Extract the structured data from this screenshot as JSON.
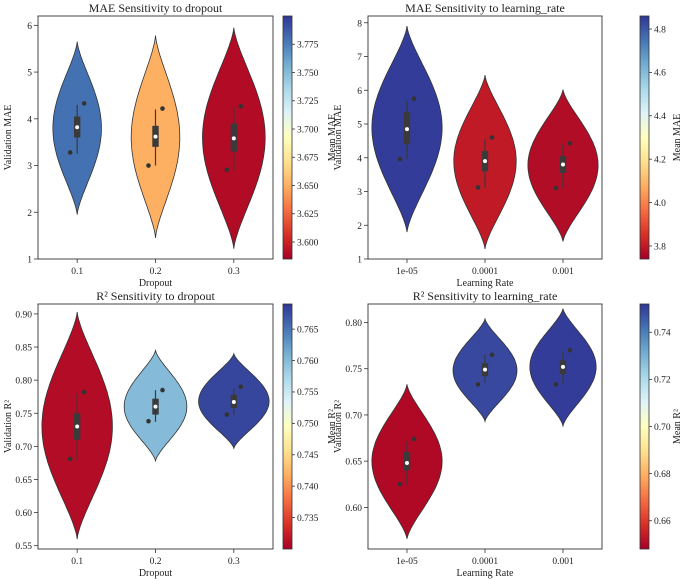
{
  "chart_data": [
    {
      "type": "violin",
      "title": "MAE Sensitivity to dropout",
      "xlabel": "Dropout",
      "ylabel": "Validation MAE",
      "categories": [
        "0.1",
        "0.2",
        "0.3"
      ],
      "ylim": [
        1,
        6.2
      ],
      "yticks": [
        "1",
        "2",
        "3",
        "4",
        "5",
        "6"
      ],
      "violins": [
        {
          "category": "0.1",
          "min": 1.95,
          "max": 5.65,
          "mode": 3.8,
          "width": 0.62,
          "q1": 3.6,
          "q3": 4.05,
          "median": 3.82,
          "wlo": 3.25,
          "whi": 4.3,
          "points": [
            4.33,
            3.28
          ],
          "mean": 3.78
        },
        {
          "category": "0.2",
          "min": 1.45,
          "max": 5.78,
          "mode": 3.6,
          "width": 0.62,
          "q1": 3.4,
          "q3": 3.85,
          "median": 3.62,
          "wlo": 3.0,
          "whi": 4.2,
          "points": [
            4.22,
            3.0
          ],
          "mean": 3.65
        },
        {
          "category": "0.3",
          "min": 1.22,
          "max": 5.95,
          "mode": 3.6,
          "width": 0.8,
          "q1": 3.3,
          "q3": 3.9,
          "median": 3.58,
          "wlo": 2.9,
          "whi": 4.25,
          "points": [
            4.27,
            2.91
          ],
          "mean": 3.59
        }
      ],
      "colorbar": {
        "label": "Mean MAE",
        "min": 3.585,
        "max": 3.8,
        "ticks": [
          "3.600",
          "3.625",
          "3.650",
          "3.675",
          "3.700",
          "3.725",
          "3.750",
          "3.775"
        ]
      }
    },
    {
      "type": "violin",
      "title": "MAE Sensitivity to learning_rate",
      "xlabel": "Learning Rate",
      "ylabel": "Validation MAE",
      "categories": [
        "1e-05",
        "0.0001",
        "0.001"
      ],
      "ylim": [
        1,
        8.2
      ],
      "yticks": [
        "1",
        "2",
        "3",
        "4",
        "5",
        "6",
        "7",
        "8"
      ],
      "violins": [
        {
          "category": "1e-05",
          "min": 1.8,
          "max": 7.9,
          "mode": 4.9,
          "width": 0.9,
          "q1": 4.4,
          "q3": 5.35,
          "median": 4.85,
          "wlo": 3.95,
          "whi": 5.7,
          "points": [
            5.75,
            3.96
          ],
          "mean": 4.85
        },
        {
          "category": "0.0001",
          "min": 1.3,
          "max": 6.45,
          "mode": 3.9,
          "width": 0.8,
          "q1": 3.6,
          "q3": 4.2,
          "median": 3.9,
          "wlo": 3.1,
          "whi": 4.55,
          "points": [
            4.6,
            3.12
          ],
          "mean": 3.8
        },
        {
          "category": "0.001",
          "min": 1.52,
          "max": 6.02,
          "mode": 3.78,
          "width": 0.9,
          "q1": 3.55,
          "q3": 4.05,
          "median": 3.8,
          "wlo": 3.1,
          "whi": 4.4,
          "points": [
            4.43,
            3.1
          ],
          "mean": 3.77
        }
      ],
      "colorbar": {
        "label": "Mean MAE",
        "min": 3.74,
        "max": 4.86,
        "ticks": [
          "3.8",
          "4.0",
          "4.2",
          "4.4",
          "4.6",
          "4.8"
        ]
      }
    },
    {
      "type": "violin",
      "title": "R² Sensitivity to dropout",
      "xlabel": "Dropout",
      "ylabel": "Validation R²",
      "categories": [
        "0.1",
        "0.2",
        "0.3"
      ],
      "ylim": [
        0.545,
        0.915
      ],
      "yticks": [
        "0.55",
        "0.60",
        "0.65",
        "0.70",
        "0.75",
        "0.80",
        "0.85",
        "0.90"
      ],
      "violins": [
        {
          "category": "0.1",
          "min": 0.56,
          "max": 0.903,
          "mode": 0.73,
          "width": 0.9,
          "q1": 0.71,
          "q3": 0.75,
          "median": 0.73,
          "wlo": 0.68,
          "whi": 0.78,
          "points": [
            0.782,
            0.681
          ],
          "mean": 0.731
        },
        {
          "category": "0.2",
          "min": 0.678,
          "max": 0.845,
          "mode": 0.76,
          "width": 0.8,
          "q1": 0.748,
          "q3": 0.772,
          "median": 0.76,
          "wlo": 0.737,
          "whi": 0.785,
          "points": [
            0.785,
            0.738
          ],
          "mean": 0.76
        },
        {
          "category": "0.3",
          "min": 0.697,
          "max": 0.84,
          "mode": 0.768,
          "width": 0.9,
          "q1": 0.758,
          "q3": 0.778,
          "median": 0.767,
          "wlo": 0.748,
          "whi": 0.788,
          "points": [
            0.79,
            0.748
          ],
          "mean": 0.768
        }
      ],
      "colorbar": {
        "label": "Mean R²",
        "min": 0.73,
        "max": 0.769,
        "ticks": [
          "0.735",
          "0.740",
          "0.745",
          "0.750",
          "0.755",
          "0.760",
          "0.765"
        ]
      }
    },
    {
      "type": "violin",
      "title": "R² Sensitivity to learning_rate",
      "xlabel": "Learning Rate",
      "ylabel": "Validation R²",
      "categories": [
        "1e-05",
        "0.0001",
        "0.001"
      ],
      "ylim": [
        0.555,
        0.82
      ],
      "yticks": [
        "0.60",
        "0.65",
        "0.70",
        "0.75",
        "0.80"
      ],
      "violins": [
        {
          "category": "1e-05",
          "min": 0.566,
          "max": 0.733,
          "mode": 0.65,
          "width": 0.9,
          "q1": 0.64,
          "q3": 0.66,
          "median": 0.648,
          "wlo": 0.625,
          "whi": 0.672,
          "points": [
            0.674,
            0.625
          ],
          "mean": 0.65
        },
        {
          "category": "0.0001",
          "min": 0.693,
          "max": 0.804,
          "mode": 0.748,
          "width": 0.82,
          "q1": 0.742,
          "q3": 0.756,
          "median": 0.749,
          "wlo": 0.735,
          "whi": 0.765,
          "points": [
            0.765,
            0.733
          ],
          "mean": 0.749
        },
        {
          "category": "0.001",
          "min": 0.688,
          "max": 0.815,
          "mode": 0.752,
          "width": 0.85,
          "q1": 0.744,
          "q3": 0.759,
          "median": 0.752,
          "wlo": 0.734,
          "whi": 0.768,
          "points": [
            0.77,
            0.733
          ],
          "mean": 0.751
        }
      ],
      "colorbar": {
        "label": "Mean R²",
        "min": 0.648,
        "max": 0.752,
        "ticks": [
          "0.66",
          "0.68",
          "0.70",
          "0.72",
          "0.74"
        ]
      }
    }
  ]
}
